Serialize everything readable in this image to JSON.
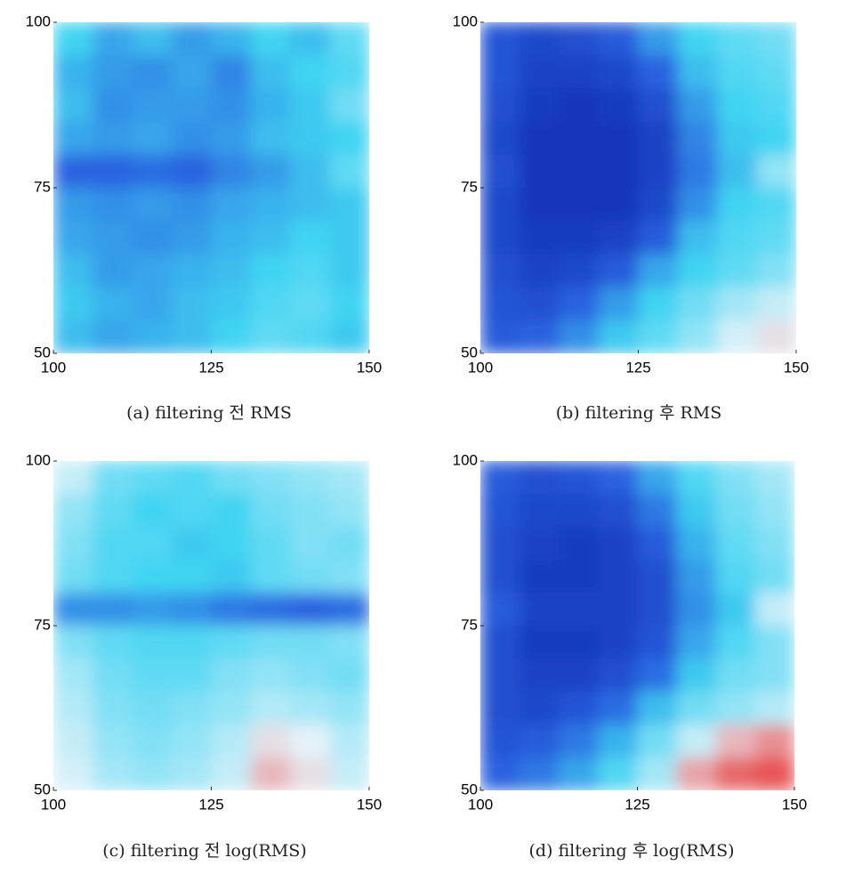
{
  "chart_data": [
    {
      "type": "heatmap",
      "title": "(a) filtering 전 RMS",
      "xlim": [
        100,
        150
      ],
      "ylim": [
        50,
        100
      ],
      "xticks": [
        100,
        125,
        150
      ],
      "yticks": [
        50,
        75,
        100
      ],
      "zlim": [
        0,
        4
      ],
      "colormap": [
        "#0b22a8",
        "#2a62e0",
        "#40d4f2",
        "#e6f3fa",
        "#e82a2a"
      ],
      "z": [
        [
          2,
          1.6,
          1.8,
          1.5,
          1.7,
          2,
          1.8,
          2.2
        ],
        [
          1.7,
          1.5,
          1.4,
          1.6,
          1.3,
          1.8,
          2,
          2.1
        ],
        [
          1.8,
          1.4,
          1.5,
          1.5,
          1.4,
          1.7,
          1.9,
          2.3
        ],
        [
          1.6,
          1.5,
          1.6,
          1.4,
          1.5,
          1.8,
          1.9,
          2
        ],
        [
          1,
          1,
          1.1,
          1,
          1.3,
          1.5,
          1.8,
          2.2
        ],
        [
          1.5,
          1.4,
          1.5,
          1.4,
          1.6,
          1.7,
          1.8,
          1.9
        ],
        [
          1.6,
          1.5,
          1.4,
          1.5,
          1.7,
          1.8,
          2,
          1.9
        ],
        [
          1.8,
          1.5,
          1.6,
          1.7,
          1.8,
          2,
          2.1,
          1.9
        ],
        [
          1.9,
          1.7,
          1.6,
          1.8,
          1.9,
          2.1,
          2.2,
          2
        ],
        [
          1.8,
          1.6,
          1.7,
          1.8,
          2,
          2.2,
          2.1,
          1.9
        ]
      ]
    },
    {
      "type": "heatmap",
      "title": "(b) filtering 후 RMS",
      "xlim": [
        100,
        150
      ],
      "ylim": [
        50,
        100
      ],
      "xticks": [
        100,
        125,
        150
      ],
      "yticks": [
        50,
        75,
        100
      ],
      "zlim": [
        0,
        4
      ],
      "colormap": [
        "#0b22a8",
        "#2a62e0",
        "#40d4f2",
        "#e6f3fa",
        "#e82a2a"
      ],
      "z": [
        [
          0.8,
          0.6,
          0.7,
          0.9,
          1.5,
          2,
          2.2,
          2.3
        ],
        [
          0.8,
          0.5,
          0.5,
          0.6,
          1,
          1.8,
          2.1,
          2.2
        ],
        [
          0.7,
          0.4,
          0.3,
          0.4,
          0.7,
          1.5,
          2,
          2.1
        ],
        [
          0.6,
          0.3,
          0.3,
          0.3,
          0.5,
          1.3,
          1.9,
          2
        ],
        [
          0.7,
          0.3,
          0.3,
          0.3,
          0.5,
          1.2,
          1.8,
          2.5
        ],
        [
          0.6,
          0.3,
          0.3,
          0.3,
          0.6,
          1.4,
          2,
          2.1
        ],
        [
          0.6,
          0.4,
          0.4,
          0.5,
          0.9,
          1.8,
          2.1,
          2.2
        ],
        [
          0.7,
          0.5,
          0.6,
          0.9,
          1.6,
          2,
          2.2,
          2.4
        ],
        [
          0.8,
          0.7,
          1,
          1.5,
          2,
          2.3,
          2.6,
          2.8
        ],
        [
          0.9,
          1,
          1.4,
          1.9,
          2.2,
          2.5,
          2.9,
          3.1
        ]
      ]
    },
    {
      "type": "heatmap",
      "title": "(c) filtering 전 log(RMS)",
      "xlim": [
        100,
        150
      ],
      "ylim": [
        50,
        100
      ],
      "xticks": [
        100,
        125,
        150
      ],
      "yticks": [
        50,
        75,
        100
      ],
      "zlim": [
        0,
        4
      ],
      "colormap": [
        "#0b22a8",
        "#2a62e0",
        "#40d4f2",
        "#e6f3fa",
        "#e82a2a"
      ],
      "z": [
        [
          2.8,
          2.3,
          2.2,
          2.1,
          2.3,
          2.4,
          2.5,
          2.6
        ],
        [
          2.5,
          2.2,
          2,
          2.1,
          2,
          2.3,
          2.4,
          2.5
        ],
        [
          2.4,
          2.1,
          2.1,
          1.9,
          2,
          2.2,
          2.4,
          2.3
        ],
        [
          2.3,
          2.1,
          2,
          2,
          1.9,
          2.2,
          2.3,
          2.4
        ],
        [
          1.4,
          1.4,
          1.5,
          1.4,
          1.2,
          1.1,
          1,
          1.1
        ],
        [
          2.4,
          2.2,
          2.1,
          2.1,
          2.2,
          2.3,
          2.3,
          2.4
        ],
        [
          2.6,
          2.3,
          2.2,
          2.2,
          2.4,
          2.5,
          2.4,
          2.3
        ],
        [
          2.7,
          2.4,
          2.3,
          2.4,
          2.5,
          2.7,
          2.6,
          2.5
        ],
        [
          2.8,
          2.5,
          2.4,
          2.5,
          2.7,
          3.1,
          3,
          2.7
        ],
        [
          2.9,
          2.6,
          2.5,
          2.6,
          2.8,
          3.3,
          3.1,
          2.8
        ]
      ]
    },
    {
      "type": "heatmap",
      "title": "(d) filtering 후 log(RMS)",
      "xlim": [
        100,
        150
      ],
      "ylim": [
        50,
        100
      ],
      "xticks": [
        100,
        125,
        150
      ],
      "yticks": [
        50,
        75,
        100
      ],
      "zlim": [
        0,
        4
      ],
      "colormap": [
        "#0b22a8",
        "#2a62e0",
        "#40d4f2",
        "#e6f3fa",
        "#e82a2a"
      ],
      "z": [
        [
          0.9,
          0.7,
          0.8,
          1,
          1.6,
          2.1,
          2.4,
          2.6
        ],
        [
          0.8,
          0.6,
          0.6,
          0.7,
          1.2,
          1.9,
          2.3,
          2.5
        ],
        [
          0.7,
          0.5,
          0.4,
          0.5,
          0.9,
          1.7,
          2.2,
          2.4
        ],
        [
          0.7,
          0.4,
          0.4,
          0.5,
          0.7,
          1.5,
          2.1,
          2.3
        ],
        [
          0.9,
          0.5,
          0.5,
          0.5,
          0.7,
          1.4,
          1.9,
          2.8
        ],
        [
          0.7,
          0.4,
          0.4,
          0.5,
          0.8,
          1.6,
          2.1,
          2.4
        ],
        [
          0.7,
          0.5,
          0.5,
          0.7,
          1.1,
          1.9,
          2.3,
          2.4
        ],
        [
          0.7,
          0.6,
          0.8,
          1.1,
          1.8,
          2.3,
          2.5,
          2.7
        ],
        [
          0.8,
          0.9,
          1.2,
          1.7,
          2.3,
          2.8,
          3.3,
          3.5
        ],
        [
          1,
          1.2,
          1.6,
          2.1,
          2.6,
          3.4,
          3.7,
          3.8
        ]
      ]
    }
  ]
}
